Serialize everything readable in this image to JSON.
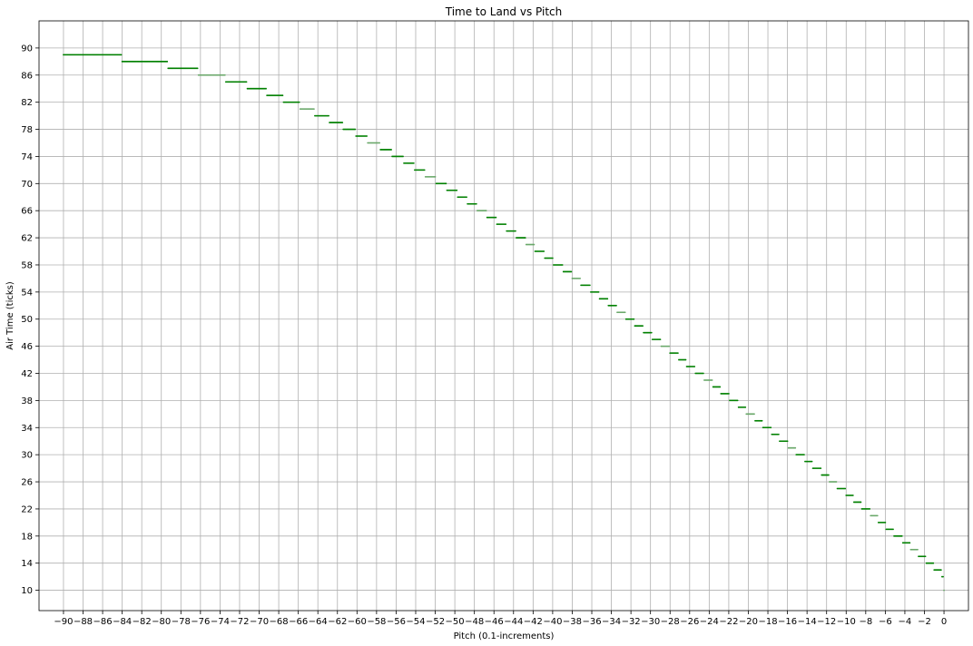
{
  "chart_data": {
    "type": "scatter",
    "title": "Time to Land vs Pitch",
    "xlabel": "Pitch (0.1-increments)",
    "ylabel": "Air Time (ticks)",
    "xlim": [
      -92.5,
      2.5
    ],
    "ylim": [
      7,
      94
    ],
    "x_ticks": [
      -90,
      -88,
      -86,
      -84,
      -82,
      -80,
      -78,
      -76,
      -74,
      -72,
      -70,
      -68,
      -66,
      -64,
      -62,
      -60,
      -58,
      -56,
      -54,
      -52,
      -50,
      -48,
      -46,
      -44,
      -42,
      -40,
      -38,
      -36,
      -34,
      -32,
      -30,
      -28,
      -26,
      -24,
      -22,
      -20,
      -18,
      -16,
      -14,
      -12,
      -10,
      -8,
      -6,
      -4,
      -2,
      0
    ],
    "y_ticks": [
      10,
      14,
      18,
      22,
      26,
      30,
      34,
      38,
      42,
      46,
      50,
      54,
      58,
      62,
      66,
      70,
      74,
      78,
      82,
      86,
      90
    ],
    "grid": true,
    "point_color": "#008000",
    "step_note_color_alt": "#6aa86a",
    "series": [
      {
        "values_xy": [
          [
            -90.0,
            89
          ],
          [
            -84.1,
            89
          ],
          [
            -84.0,
            88
          ],
          [
            -79.4,
            88
          ],
          [
            -79.3,
            87
          ],
          [
            -76.3,
            87
          ],
          [
            -76.2,
            86
          ],
          [
            -73.5,
            86
          ],
          [
            -73.4,
            85
          ],
          [
            -71.3,
            85
          ],
          [
            -71.2,
            84
          ],
          [
            -69.3,
            84
          ],
          [
            -69.2,
            83
          ],
          [
            -67.6,
            83
          ],
          [
            -67.5,
            82
          ],
          [
            -65.9,
            82
          ],
          [
            -65.8,
            81
          ],
          [
            -64.4,
            81
          ],
          [
            -64.3,
            80
          ],
          [
            -62.9,
            80
          ],
          [
            -62.8,
            79
          ],
          [
            -61.5,
            79
          ],
          [
            -61.4,
            78
          ],
          [
            -60.2,
            78
          ],
          [
            -60.1,
            77
          ],
          [
            -59.0,
            77
          ],
          [
            -58.9,
            76
          ],
          [
            -57.7,
            76
          ],
          [
            -57.6,
            75
          ],
          [
            -56.5,
            75
          ],
          [
            -56.4,
            74
          ],
          [
            -55.3,
            74
          ],
          [
            -55.2,
            73
          ],
          [
            -54.2,
            73
          ],
          [
            -54.1,
            72
          ],
          [
            -53.1,
            72
          ],
          [
            -53.0,
            71
          ],
          [
            -52.0,
            71
          ],
          [
            -51.9,
            70
          ],
          [
            -50.9,
            70
          ],
          [
            -50.8,
            69
          ],
          [
            -49.8,
            69
          ],
          [
            -49.7,
            68
          ],
          [
            -48.8,
            68
          ],
          [
            -48.7,
            67
          ],
          [
            -47.8,
            67
          ],
          [
            -47.7,
            66
          ],
          [
            -46.8,
            66
          ],
          [
            -46.7,
            65
          ],
          [
            -45.8,
            65
          ],
          [
            -45.7,
            64
          ],
          [
            -44.8,
            64
          ],
          [
            -44.7,
            63
          ],
          [
            -43.8,
            63
          ],
          [
            -43.7,
            62
          ],
          [
            -42.8,
            62
          ],
          [
            -42.7,
            61
          ],
          [
            -41.9,
            61
          ],
          [
            -41.8,
            60
          ],
          [
            -40.9,
            60
          ],
          [
            -40.8,
            59
          ],
          [
            -40.0,
            59
          ],
          [
            -39.9,
            58
          ],
          [
            -39.0,
            58
          ],
          [
            -38.9,
            57
          ],
          [
            -38.1,
            57
          ],
          [
            -38.0,
            56
          ],
          [
            -37.2,
            56
          ],
          [
            -37.1,
            55
          ],
          [
            -36.2,
            55
          ],
          [
            -36.1,
            54
          ],
          [
            -35.3,
            54
          ],
          [
            -35.2,
            53
          ],
          [
            -34.4,
            53
          ],
          [
            -34.3,
            52
          ],
          [
            -33.5,
            52
          ],
          [
            -33.4,
            51
          ],
          [
            -32.6,
            51
          ],
          [
            -32.5,
            50
          ],
          [
            -31.7,
            50
          ],
          [
            -31.6,
            49
          ],
          [
            -30.8,
            49
          ],
          [
            -30.7,
            48
          ],
          [
            -29.9,
            48
          ],
          [
            -29.8,
            47
          ],
          [
            -29.0,
            47
          ],
          [
            -28.9,
            46
          ],
          [
            -28.1,
            46
          ],
          [
            -28.0,
            45
          ],
          [
            -27.2,
            45
          ],
          [
            -27.1,
            44
          ],
          [
            -26.4,
            44
          ],
          [
            -26.3,
            43
          ],
          [
            -25.5,
            43
          ],
          [
            -25.4,
            42
          ],
          [
            -24.6,
            42
          ],
          [
            -24.5,
            41
          ],
          [
            -23.7,
            41
          ],
          [
            -23.6,
            40
          ],
          [
            -22.9,
            40
          ],
          [
            -22.8,
            39
          ],
          [
            -22.0,
            39
          ],
          [
            -21.9,
            38
          ],
          [
            -21.1,
            38
          ],
          [
            -21.0,
            37
          ],
          [
            -20.3,
            37
          ],
          [
            -20.2,
            36
          ],
          [
            -19.4,
            36
          ],
          [
            -19.3,
            35
          ],
          [
            -18.6,
            35
          ],
          [
            -18.5,
            34
          ],
          [
            -17.7,
            34
          ],
          [
            -17.6,
            33
          ],
          [
            -16.9,
            33
          ],
          [
            -16.8,
            32
          ],
          [
            -16.0,
            32
          ],
          [
            -15.9,
            31
          ],
          [
            -15.2,
            31
          ],
          [
            -15.1,
            30
          ],
          [
            -14.3,
            30
          ],
          [
            -14.2,
            29
          ],
          [
            -13.5,
            29
          ],
          [
            -13.4,
            28
          ],
          [
            -12.6,
            28
          ],
          [
            -12.5,
            27
          ],
          [
            -11.8,
            27
          ],
          [
            -11.7,
            26
          ],
          [
            -11.0,
            26
          ],
          [
            -10.9,
            25
          ],
          [
            -10.1,
            25
          ],
          [
            -10.0,
            24
          ],
          [
            -9.3,
            24
          ],
          [
            -9.2,
            23
          ],
          [
            -8.5,
            23
          ],
          [
            -8.4,
            22
          ],
          [
            -7.6,
            22
          ],
          [
            -7.5,
            21
          ],
          [
            -6.8,
            21
          ],
          [
            -6.7,
            20
          ],
          [
            -6.0,
            20
          ],
          [
            -5.9,
            19
          ],
          [
            -5.2,
            19
          ],
          [
            -5.1,
            18
          ],
          [
            -4.3,
            18
          ],
          [
            -4.2,
            17
          ],
          [
            -3.5,
            17
          ],
          [
            -3.4,
            16
          ],
          [
            -2.7,
            16
          ],
          [
            -2.6,
            15
          ],
          [
            -1.9,
            15
          ],
          [
            -1.8,
            14
          ],
          [
            -1.1,
            14
          ],
          [
            -1.0,
            13
          ],
          [
            -0.3,
            13
          ],
          [
            -0.2,
            12
          ],
          [
            -0.1,
            12
          ],
          [
            0.0,
            10
          ]
        ]
      }
    ]
  }
}
